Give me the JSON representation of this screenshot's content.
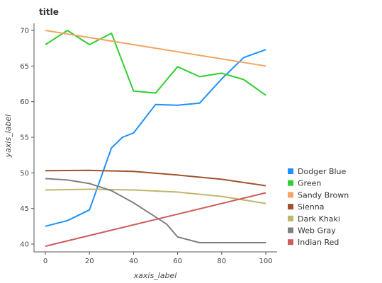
{
  "chart_data": {
    "type": "line",
    "title": "title",
    "xlabel": "xaxis_label",
    "ylabel": "yaxis_label",
    "xlim": [
      0,
      100
    ],
    "ylim": [
      40,
      70
    ],
    "x_ticks": [
      "0",
      "20",
      "40",
      "60",
      "80",
      "100"
    ],
    "y_ticks": [
      "40",
      "45",
      "50",
      "55",
      "60",
      "65",
      "70"
    ],
    "grid": false,
    "legend_position": "right",
    "series": [
      {
        "name": "Dodger Blue",
        "color": "#1e90ff",
        "x": [
          0,
          10,
          20,
          30,
          35,
          40,
          50,
          60,
          70,
          80,
          90,
          100
        ],
        "y": [
          42.5,
          43.3,
          44.8,
          53.5,
          55.0,
          55.6,
          59.6,
          59.5,
          59.8,
          63.2,
          66.2,
          67.3
        ]
      },
      {
        "name": "Green",
        "color": "#32cd32",
        "x": [
          0,
          10,
          20,
          30,
          40,
          50,
          60,
          70,
          80,
          90,
          100
        ],
        "y": [
          68.0,
          70.0,
          68.0,
          69.6,
          61.5,
          61.2,
          64.9,
          63.5,
          64.0,
          63.1,
          60.9
        ]
      },
      {
        "name": "Sandy Brown",
        "color": "#f4a460",
        "x": [
          0,
          100
        ],
        "y": [
          70.0,
          65.0
        ]
      },
      {
        "name": "Sienna",
        "color": "#a0522d",
        "x": [
          0,
          20,
          40,
          60,
          80,
          100
        ],
        "y": [
          50.3,
          50.35,
          50.2,
          49.7,
          49.1,
          48.2
        ]
      },
      {
        "name": "Dark Khaki",
        "color": "#bdb76b",
        "x": [
          0,
          20,
          40,
          60,
          80,
          100
        ],
        "y": [
          47.6,
          47.7,
          47.6,
          47.3,
          46.7,
          45.7
        ]
      },
      {
        "name": "Web Gray",
        "color": "#808080",
        "x": [
          0,
          10,
          20,
          30,
          40,
          50,
          55,
          60,
          70,
          80,
          90,
          100
        ],
        "y": [
          49.2,
          49.0,
          48.5,
          47.5,
          45.8,
          43.8,
          42.8,
          41.0,
          40.2,
          40.2,
          40.2,
          40.2
        ]
      },
      {
        "name": "Indian Red",
        "color": "#cd5c5c",
        "x": [
          0,
          100
        ],
        "y": [
          39.7,
          47.2
        ]
      }
    ],
    "legend": [
      "Dodger Blue",
      "Green",
      "Sandy Brown",
      "Sienna",
      "Dark Khaki",
      "Web Gray",
      "Indian Red"
    ]
  }
}
